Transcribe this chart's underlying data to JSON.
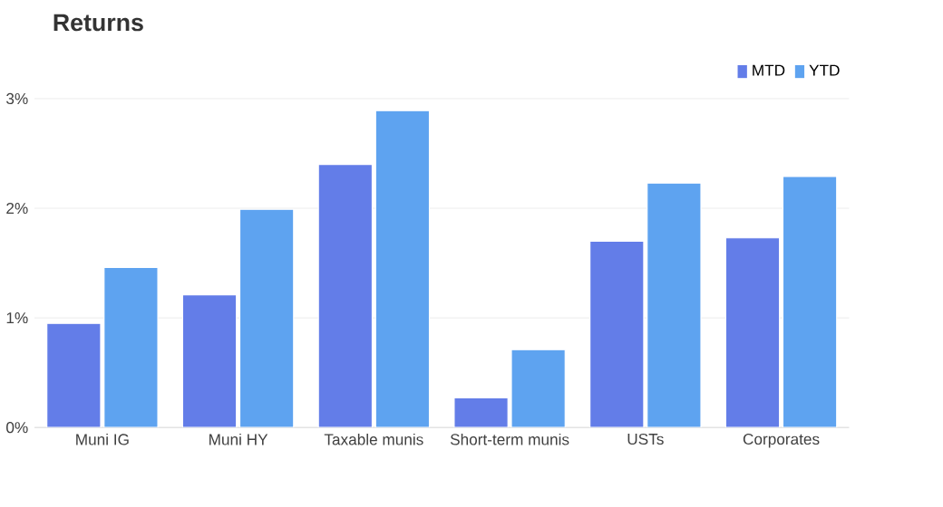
{
  "chart_data": {
    "type": "bar",
    "title": "Returns",
    "categories": [
      "Muni IG",
      "Muni HY",
      "Taxable munis",
      "Short-term munis",
      "USTs",
      "Corporates"
    ],
    "series": [
      {
        "name": "MTD",
        "color": "#637de8",
        "values": [
          0.95,
          1.21,
          2.4,
          0.27,
          1.7,
          1.73
        ]
      },
      {
        "name": "YTD",
        "color": "#5ea3f0",
        "values": [
          1.46,
          1.99,
          2.89,
          0.71,
          2.23,
          2.29
        ]
      }
    ],
    "ylim": [
      0,
      3
    ],
    "yticks": [
      {
        "value": 0,
        "label": "0%"
      },
      {
        "value": 1,
        "label": "1%"
      },
      {
        "value": 2,
        "label": "2%"
      },
      {
        "value": 3,
        "label": "3%"
      }
    ],
    "grid": "y",
    "legend": "top right"
  }
}
